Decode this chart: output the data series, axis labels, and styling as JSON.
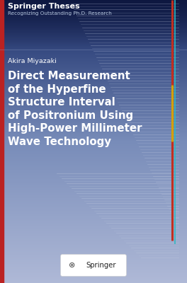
{
  "title_bold": "Springer Theses",
  "title_sub": "Recognizing Outstanding Ph.D. Research",
  "author": "Akira Miyazaki",
  "book_title_lines": [
    "Direct Measurement",
    "of the Hyperfine",
    "Structure Interval",
    "of Positronium Using",
    "High-Power Millimeter",
    "Wave Technology"
  ],
  "springer_text": "Springer",
  "figsize": [
    2.64,
    4.0
  ],
  "dpi": 100
}
